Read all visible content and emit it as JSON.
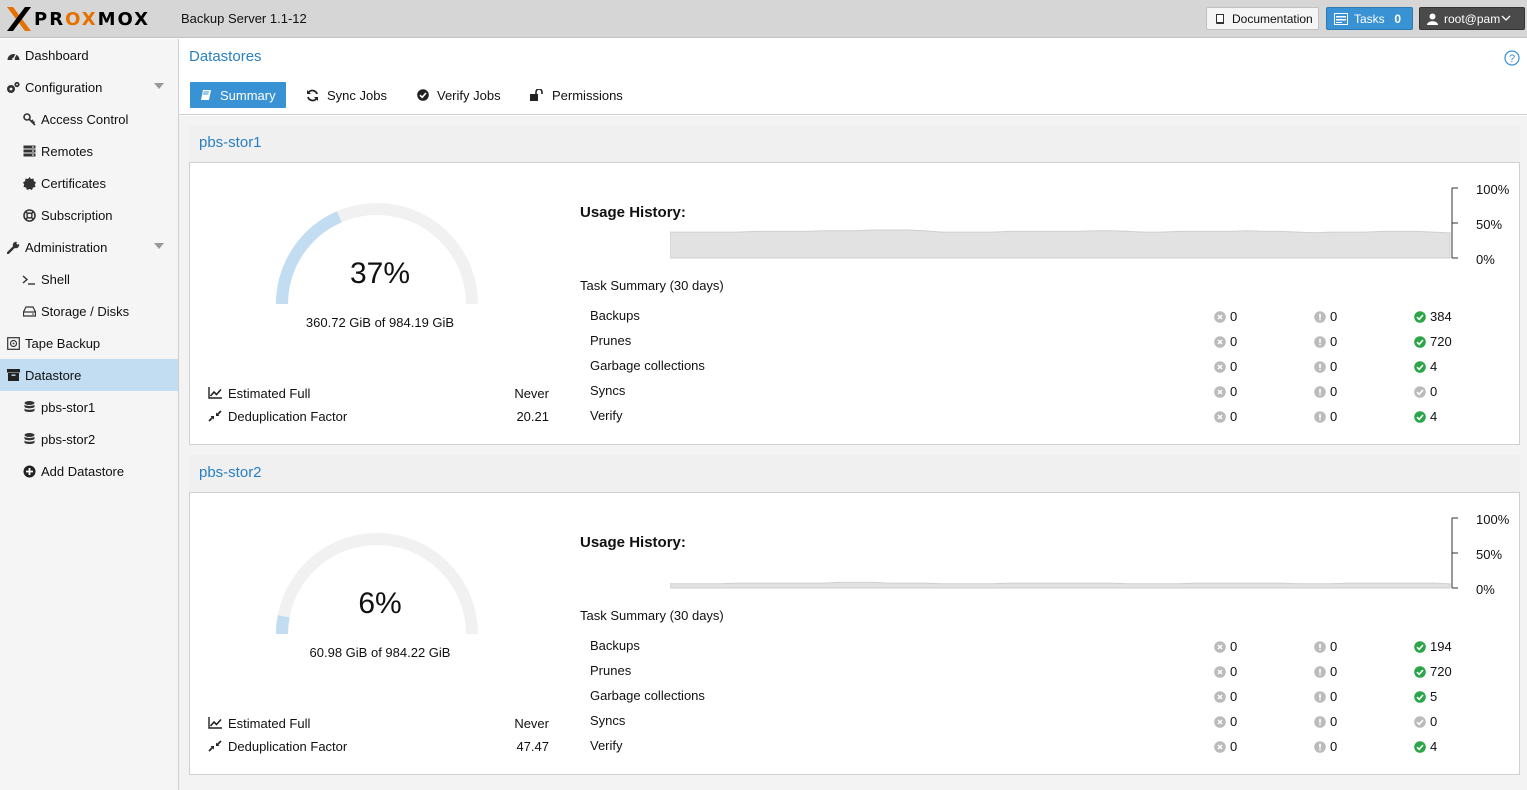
{
  "header": {
    "logo_text": "PROXMOX",
    "app_version": "Backup Server 1.1-12",
    "documentation_label": "Documentation",
    "tasks_label": "Tasks",
    "tasks_count": "0",
    "user_label": "root@pam"
  },
  "sidebar": {
    "items": [
      {
        "label": "Dashboard",
        "icon": "dashboard-icon"
      },
      {
        "label": "Configuration",
        "icon": "gears-icon"
      },
      {
        "label": "Access Control",
        "icon": "key-icon"
      },
      {
        "label": "Remotes",
        "icon": "server-icon"
      },
      {
        "label": "Certificates",
        "icon": "certificate-icon"
      },
      {
        "label": "Subscription",
        "icon": "life-ring-icon"
      },
      {
        "label": "Administration",
        "icon": "wrench-icon"
      },
      {
        "label": "Shell",
        "icon": "terminal-icon"
      },
      {
        "label": "Storage / Disks",
        "icon": "hdd-icon"
      },
      {
        "label": "Tape Backup",
        "icon": "tape-icon"
      },
      {
        "label": "Datastore",
        "icon": "archive-icon"
      },
      {
        "label": "pbs-stor1",
        "icon": "database-icon"
      },
      {
        "label": "pbs-stor2",
        "icon": "database-icon"
      },
      {
        "label": "Add Datastore",
        "icon": "plus-circle-icon"
      }
    ]
  },
  "main": {
    "title": "Datastores",
    "tabs": [
      {
        "label": "Summary",
        "icon": "book-icon"
      },
      {
        "label": "Sync Jobs",
        "icon": "refresh-icon"
      },
      {
        "label": "Verify Jobs",
        "icon": "check-circle-icon"
      },
      {
        "label": "Permissions",
        "icon": "unlock-icon"
      }
    ]
  },
  "datastores": [
    {
      "name": "pbs-stor1",
      "usage_fraction": 0.37,
      "usage_percent": "37%",
      "usage_size": "360.72 GiB of 984.19 GiB",
      "estimated_full_label": "Estimated Full",
      "estimated_full_value": "Never",
      "dedup_label": "Deduplication Factor",
      "dedup_value": "20.21",
      "usage_history_label": "Usage History:",
      "usage_history": [
        0.37,
        0.37,
        0.37,
        0.37,
        0.37,
        0.38,
        0.38,
        0.38,
        0.38,
        0.39,
        0.39,
        0.39,
        0.4,
        0.4,
        0.4,
        0.39,
        0.37,
        0.37,
        0.37,
        0.37,
        0.38,
        0.38,
        0.38,
        0.38,
        0.38,
        0.39,
        0.39,
        0.38,
        0.37,
        0.37,
        0.38,
        0.38,
        0.38,
        0.38,
        0.39,
        0.38,
        0.38,
        0.37,
        0.36,
        0.37,
        0.37,
        0.37,
        0.38,
        0.38,
        0.38,
        0.37,
        0.36
      ],
      "axis": [
        "100%",
        "50%",
        "0%"
      ],
      "task_summary_title": "Task Summary (30 days)",
      "tasks": [
        {
          "name": "Backups",
          "error": "0",
          "warning": "0",
          "ok": "384"
        },
        {
          "name": "Prunes",
          "error": "0",
          "warning": "0",
          "ok": "720"
        },
        {
          "name": "Garbage collections",
          "error": "0",
          "warning": "0",
          "ok": "4"
        },
        {
          "name": "Syncs",
          "error": "0",
          "warning": "0",
          "ok": "0"
        },
        {
          "name": "Verify",
          "error": "0",
          "warning": "0",
          "ok": "4"
        }
      ]
    },
    {
      "name": "pbs-stor2",
      "usage_fraction": 0.06,
      "usage_percent": "6%",
      "usage_size": "60.98 GiB of 984.22 GiB",
      "estimated_full_label": "Estimated Full",
      "estimated_full_value": "Never",
      "dedup_label": "Deduplication Factor",
      "dedup_value": "47.47",
      "usage_history_label": "Usage History:",
      "usage_history": [
        0.06,
        0.06,
        0.06,
        0.06,
        0.07,
        0.07,
        0.07,
        0.07,
        0.07,
        0.07,
        0.08,
        0.08,
        0.08,
        0.07,
        0.07,
        0.07,
        0.06,
        0.06,
        0.06,
        0.06,
        0.07,
        0.07,
        0.07,
        0.07,
        0.07,
        0.07,
        0.07,
        0.06,
        0.06,
        0.06,
        0.06,
        0.07,
        0.07,
        0.07,
        0.07,
        0.07,
        0.07,
        0.06,
        0.06,
        0.06,
        0.07,
        0.07,
        0.07,
        0.07,
        0.07,
        0.07,
        0.06
      ],
      "axis": [
        "100%",
        "50%",
        "0%"
      ],
      "task_summary_title": "Task Summary (30 days)",
      "tasks": [
        {
          "name": "Backups",
          "error": "0",
          "warning": "0",
          "ok": "194"
        },
        {
          "name": "Prunes",
          "error": "0",
          "warning": "0",
          "ok": "720"
        },
        {
          "name": "Garbage collections",
          "error": "0",
          "warning": "0",
          "ok": "5"
        },
        {
          "name": "Syncs",
          "error": "0",
          "warning": "0",
          "ok": "0"
        },
        {
          "name": "Verify",
          "error": "0",
          "warning": "0",
          "ok": "4"
        }
      ]
    }
  ],
  "colors": {
    "accent": "#3892d4",
    "brand_orange": "#e57000",
    "link_blue": "#2a7fc1",
    "ok_green": "#2ca548",
    "gauge_fill": "#c2ddf2",
    "gauge_track": "#f1f1f1"
  }
}
